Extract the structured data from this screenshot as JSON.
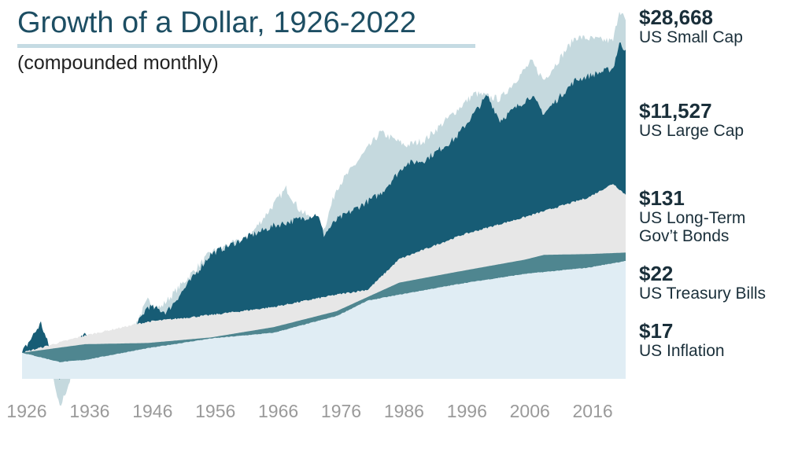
{
  "header": {
    "title": "Growth of a Dollar, 1926-2022",
    "subtitle": "(compounded monthly)"
  },
  "series_labels": [
    {
      "value": "$28,668",
      "name": "US Small Cap"
    },
    {
      "value": "$11,527",
      "name": "US Large Cap"
    },
    {
      "value": "$131",
      "name": "US Long-Term",
      "name2": "Gov’t Bonds"
    },
    {
      "value": "$22",
      "name": "US Treasury Bills"
    },
    {
      "value": "$17",
      "name": "US Inflation"
    }
  ],
  "colors": {
    "small_cap": "#c5d9de",
    "large_cap": "#175c75",
    "bonds": "#e7e7e7",
    "tbills": "#4f8690",
    "inflation": "#e0edf4",
    "title": "#1d4e63",
    "tick_text": "#9a9a9a"
  },
  "chart_data": {
    "type": "area",
    "title": "Growth of a Dollar, 1926-2022",
    "subtitle": "(compounded monthly)",
    "y_scale": "log",
    "x_range": [
      1926,
      2022
    ],
    "x_ticks": [
      "1926",
      "1936",
      "1946",
      "1956",
      "1966",
      "1976",
      "1986",
      "1996",
      "2006",
      "2016"
    ],
    "series": [
      {
        "name": "US Small Cap",
        "end_value": 28668,
        "points": [
          [
            1926,
            1
          ],
          [
            1929,
            2.2
          ],
          [
            1932,
            0.18
          ],
          [
            1936,
            1.5
          ],
          [
            1937,
            0.6
          ],
          [
            1941,
            0.8
          ],
          [
            1946,
            5
          ],
          [
            1948,
            4
          ],
          [
            1956,
            22
          ],
          [
            1962,
            35
          ],
          [
            1968,
            160
          ],
          [
            1970,
            85
          ],
          [
            1974,
            45
          ],
          [
            1976,
            160
          ],
          [
            1983,
            900
          ],
          [
            1987,
            600
          ],
          [
            1990,
            700
          ],
          [
            1998,
            3000
          ],
          [
            2002,
            2500
          ],
          [
            2007,
            8000
          ],
          [
            2009,
            4500
          ],
          [
            2014,
            17000
          ],
          [
            2020,
            15000
          ],
          [
            2021,
            40000
          ],
          [
            2022,
            28668
          ]
        ]
      },
      {
        "name": "US Large Cap",
        "end_value": 11527,
        "points": [
          [
            1926,
            1
          ],
          [
            1929,
            2.5
          ],
          [
            1932,
            0.45
          ],
          [
            1936,
            2
          ],
          [
            1937,
            1.3
          ],
          [
            1942,
            1.1
          ],
          [
            1946,
            4.2
          ],
          [
            1949,
            3.5
          ],
          [
            1956,
            21
          ],
          [
            1962,
            36
          ],
          [
            1966,
            50
          ],
          [
            1973,
            72
          ],
          [
            1974,
            38
          ],
          [
            1976,
            60
          ],
          [
            1983,
            135
          ],
          [
            1987,
            340
          ],
          [
            1990,
            380
          ],
          [
            1995,
            760
          ],
          [
            2000,
            2800
          ],
          [
            2002,
            1300
          ],
          [
            2007,
            2800
          ],
          [
            2009,
            1600
          ],
          [
            2014,
            4500
          ],
          [
            2020,
            6500
          ],
          [
            2021,
            14000
          ],
          [
            2022,
            11527
          ]
        ]
      },
      {
        "name": "US Long-Term Gov’t Bonds",
        "end_value": 131,
        "points": [
          [
            1926,
            1
          ],
          [
            1936,
            1.7
          ],
          [
            1946,
            2.6
          ],
          [
            1956,
            3.2
          ],
          [
            1966,
            4.1
          ],
          [
            1976,
            6
          ],
          [
            1981,
            7
          ],
          [
            1986,
            18
          ],
          [
            1996,
            38
          ],
          [
            2006,
            66
          ],
          [
            2016,
            120
          ],
          [
            2020,
            185
          ],
          [
            2022,
            131
          ]
        ]
      },
      {
        "name": "US Treasury Bills",
        "end_value": 22,
        "points": [
          [
            1926,
            1
          ],
          [
            1936,
            1.3
          ],
          [
            1946,
            1.35
          ],
          [
            1956,
            1.6
          ],
          [
            1966,
            2.2
          ],
          [
            1976,
            3.6
          ],
          [
            1981,
            5.6
          ],
          [
            1986,
            8.7
          ],
          [
            1996,
            12.5
          ],
          [
            2006,
            17.7
          ],
          [
            2009,
            20.5
          ],
          [
            2016,
            21
          ],
          [
            2022,
            22
          ]
        ]
      },
      {
        "name": "US Inflation",
        "end_value": 17,
        "points": [
          [
            1926,
            1
          ],
          [
            1932,
            0.75
          ],
          [
            1936,
            0.8
          ],
          [
            1946,
            1.15
          ],
          [
            1956,
            1.55
          ],
          [
            1966,
            1.85
          ],
          [
            1976,
            3.1
          ],
          [
            1981,
            5
          ],
          [
            1986,
            6
          ],
          [
            1996,
            8.5
          ],
          [
            2006,
            11.4
          ],
          [
            2016,
            13.8
          ],
          [
            2022,
            17
          ]
        ]
      }
    ]
  }
}
